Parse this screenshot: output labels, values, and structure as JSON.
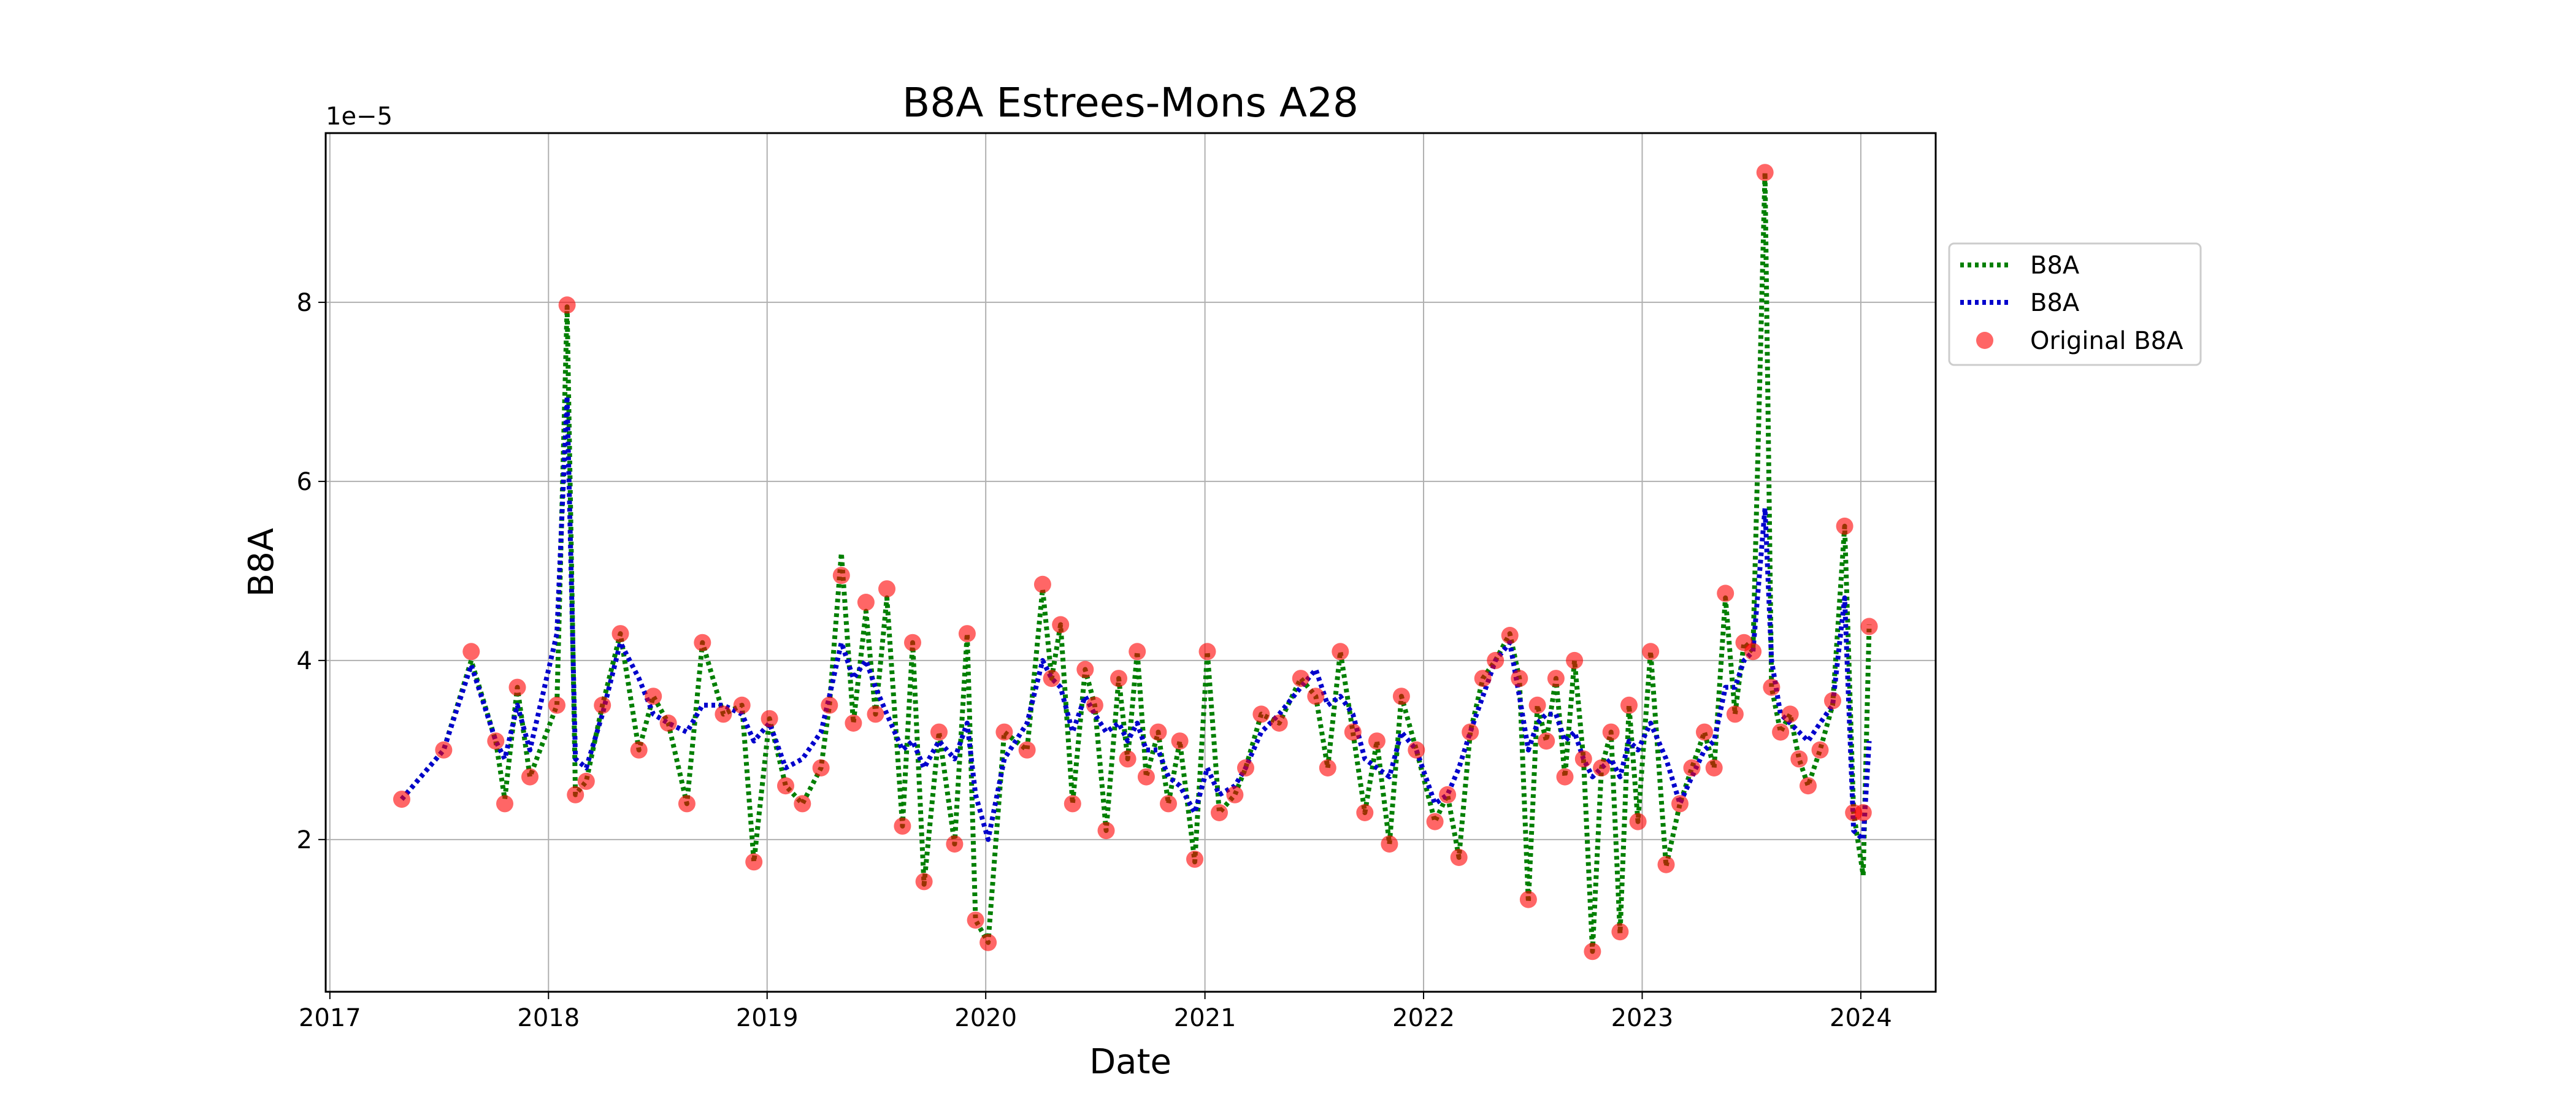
{
  "chart_data": {
    "type": "line",
    "title": "B8A Estrees-Mons A28",
    "xlabel": "Date",
    "ylabel": "B8A",
    "y_offset_label": "1e−5",
    "x_tick_labels": [
      "2017",
      "2018",
      "2019",
      "2020",
      "2021",
      "2022",
      "2023",
      "2024"
    ],
    "y_tick_labels": [
      "2",
      "4",
      "6",
      "8"
    ],
    "xlim": [
      "2016-12-25",
      "2024-05-05"
    ],
    "ylim": [
      3e-06,
      9.89e-05
    ],
    "grid": true,
    "legend_position": "outside-right",
    "series": [
      {
        "name": "B8A",
        "style": "dotted-line",
        "color": "#007f00",
        "x": [
          "2017-05-01",
          "2017-07-10",
          "2017-08-25",
          "2017-10-05",
          "2017-10-20",
          "2017-11-10",
          "2017-12-01",
          "2018-01-15",
          "2018-02-01",
          "2018-02-15",
          "2018-03-05",
          "2018-04-01",
          "2018-05-01",
          "2018-06-01",
          "2018-06-25",
          "2018-07-20",
          "2018-08-20",
          "2018-09-15",
          "2018-10-20",
          "2018-11-20",
          "2018-12-10",
          "2019-01-05",
          "2019-02-01",
          "2019-03-01",
          "2019-04-01",
          "2019-04-15",
          "2019-05-05",
          "2019-05-25",
          "2019-06-15",
          "2019-07-01",
          "2019-07-20",
          "2019-08-15",
          "2019-09-01",
          "2019-09-20",
          "2019-10-15",
          "2019-11-10",
          "2019-12-01",
          "2019-12-15",
          "2020-01-05",
          "2020-02-01",
          "2020-03-10",
          "2020-04-05",
          "2020-04-20",
          "2020-05-05",
          "2020-05-25",
          "2020-06-15",
          "2020-07-01",
          "2020-07-20",
          "2020-08-10",
          "2020-08-25",
          "2020-09-10",
          "2020-09-25",
          "2020-10-15",
          "2020-11-01",
          "2020-11-20",
          "2020-12-15",
          "2021-01-05",
          "2021-01-25",
          "2021-02-20",
          "2021-03-10",
          "2021-04-05",
          "2021-05-05",
          "2021-06-10",
          "2021-07-05",
          "2021-07-25",
          "2021-08-15",
          "2021-09-05",
          "2021-09-25",
          "2021-10-15",
          "2021-11-05",
          "2021-11-25",
          "2021-12-20",
          "2022-01-20",
          "2022-02-10",
          "2022-03-01",
          "2022-03-20",
          "2022-04-10",
          "2022-05-01",
          "2022-05-25",
          "2022-06-10",
          "2022-06-25",
          "2022-07-10",
          "2022-07-25",
          "2022-08-10",
          "2022-08-25",
          "2022-09-10",
          "2022-09-25",
          "2022-10-10",
          "2022-10-25",
          "2022-11-10",
          "2022-11-25",
          "2022-12-10",
          "2022-12-25",
          "2023-01-15",
          "2023-02-10",
          "2023-03-05",
          "2023-03-25",
          "2023-04-15",
          "2023-05-01",
          "2023-05-20",
          "2023-06-05",
          "2023-06-20",
          "2023-07-05",
          "2023-07-25",
          "2023-08-05",
          "2023-08-20",
          "2023-09-05",
          "2023-09-20",
          "2023-10-05",
          "2023-10-25",
          "2023-11-15",
          "2023-12-05",
          "2023-12-20",
          "2024-01-05",
          "2024-01-15"
        ],
        "y": [
          2.45e-05,
          3e-05,
          4e-05,
          3.1e-05,
          2.45e-05,
          3.7e-05,
          2.7e-05,
          3.5e-05,
          7.95e-05,
          2.5e-05,
          2.65e-05,
          3.5e-05,
          4.3e-05,
          3e-05,
          3.6e-05,
          3.3e-05,
          2.4e-05,
          4.2e-05,
          3.4e-05,
          3.5e-05,
          1.75e-05,
          3.35e-05,
          2.6e-05,
          2.4e-05,
          2.8e-05,
          3.5e-05,
          5.2e-05,
          3.3e-05,
          4.55e-05,
          3.4e-05,
          4.7e-05,
          2.15e-05,
          4.2e-05,
          1.5e-05,
          3.2e-05,
          1.95e-05,
          4.3e-05,
          1.1e-05,
          8.5e-06,
          3.2e-05,
          3e-05,
          4.8e-05,
          3.8e-05,
          4.4e-05,
          2.4e-05,
          3.9e-05,
          3.5e-05,
          2.1e-05,
          3.8e-05,
          2.9e-05,
          4.1e-05,
          2.7e-05,
          3.2e-05,
          2.4e-05,
          3.1e-05,
          1.75e-05,
          4.1e-05,
          2.3e-05,
          2.5e-05,
          2.8e-05,
          3.4e-05,
          3.3e-05,
          3.8e-05,
          3.6e-05,
          2.8e-05,
          4.1e-05,
          3.2e-05,
          2.3e-05,
          3.1e-05,
          1.95e-05,
          3.6e-05,
          3e-05,
          2.2e-05,
          2.5e-05,
          1.8e-05,
          3.2e-05,
          3.8e-05,
          4e-05,
          4.3e-05,
          3.8e-05,
          1.3e-05,
          3.5e-05,
          3.1e-05,
          3.8e-05,
          2.7e-05,
          4e-05,
          2.9e-05,
          7.5e-06,
          2.8e-05,
          3.2e-05,
          9.5e-06,
          3.5e-05,
          2.2e-05,
          4.1e-05,
          1.7e-05,
          2.4e-05,
          2.8e-05,
          3.2e-05,
          2.8e-05,
          4.7e-05,
          3.4e-05,
          4.2e-05,
          4.1e-05,
          9.45e-05,
          3.7e-05,
          3.2e-05,
          3.4e-05,
          2.9e-05,
          2.6e-05,
          3e-05,
          3.5e-05,
          5.5e-05,
          2.3e-05,
          1.6e-05,
          4.4e-05
        ]
      },
      {
        "name": "B8A",
        "style": "dotted-line",
        "color": "#0000cc",
        "x": [
          "2017-05-01",
          "2017-07-10",
          "2017-08-25",
          "2017-10-05",
          "2017-10-20",
          "2017-11-10",
          "2017-12-01",
          "2018-01-15",
          "2018-02-01",
          "2018-02-15",
          "2018-03-05",
          "2018-04-01",
          "2018-05-01",
          "2018-06-01",
          "2018-06-25",
          "2018-07-20",
          "2018-08-20",
          "2018-09-15",
          "2018-10-20",
          "2018-11-20",
          "2018-12-10",
          "2019-01-05",
          "2019-02-01",
          "2019-03-01",
          "2019-04-01",
          "2019-04-15",
          "2019-05-05",
          "2019-05-25",
          "2019-06-15",
          "2019-07-01",
          "2019-07-20",
          "2019-08-15",
          "2019-09-01",
          "2019-09-20",
          "2019-10-15",
          "2019-11-10",
          "2019-12-01",
          "2019-12-15",
          "2020-01-05",
          "2020-02-01",
          "2020-03-10",
          "2020-04-05",
          "2020-04-20",
          "2020-05-05",
          "2020-05-25",
          "2020-06-15",
          "2020-07-01",
          "2020-07-20",
          "2020-08-10",
          "2020-08-25",
          "2020-09-10",
          "2020-09-25",
          "2020-10-15",
          "2020-11-01",
          "2020-11-20",
          "2020-12-15",
          "2021-01-05",
          "2021-01-25",
          "2021-02-20",
          "2021-03-10",
          "2021-04-05",
          "2021-05-05",
          "2021-06-10",
          "2021-07-05",
          "2021-07-25",
          "2021-08-15",
          "2021-09-05",
          "2021-09-25",
          "2021-10-15",
          "2021-11-05",
          "2021-11-25",
          "2021-12-20",
          "2022-01-20",
          "2022-02-10",
          "2022-03-01",
          "2022-03-20",
          "2022-04-10",
          "2022-05-01",
          "2022-05-25",
          "2022-06-10",
          "2022-06-25",
          "2022-07-10",
          "2022-07-25",
          "2022-08-10",
          "2022-08-25",
          "2022-09-10",
          "2022-09-25",
          "2022-10-10",
          "2022-10-25",
          "2022-11-10",
          "2022-11-25",
          "2022-12-10",
          "2022-12-25",
          "2023-01-15",
          "2023-02-10",
          "2023-03-05",
          "2023-03-25",
          "2023-04-15",
          "2023-05-01",
          "2023-05-20",
          "2023-06-05",
          "2023-06-20",
          "2023-07-05",
          "2023-07-25",
          "2023-08-05",
          "2023-08-20",
          "2023-09-05",
          "2023-09-20",
          "2023-10-05",
          "2023-10-25",
          "2023-11-15",
          "2023-12-05",
          "2023-12-20",
          "2024-01-05",
          "2024-01-15"
        ],
        "y": [
          2.45e-05,
          3e-05,
          3.95e-05,
          3.1e-05,
          2.9e-05,
          3.5e-05,
          3e-05,
          4.3e-05,
          6.95e-05,
          2.9e-05,
          2.8e-05,
          3.4e-05,
          4.2e-05,
          3.8e-05,
          3.4e-05,
          3.3e-05,
          3.2e-05,
          3.5e-05,
          3.5e-05,
          3.4e-05,
          3.1e-05,
          3.3e-05,
          2.8e-05,
          2.9e-05,
          3.2e-05,
          3.6e-05,
          4.2e-05,
          3.8e-05,
          4e-05,
          3.7e-05,
          3.4e-05,
          3e-05,
          3.1e-05,
          2.8e-05,
          3.1e-05,
          2.9e-05,
          3.3e-05,
          2.5e-05,
          2e-05,
          2.9e-05,
          3.3e-05,
          4e-05,
          3.8e-05,
          3.7e-05,
          3.2e-05,
          3.6e-05,
          3.4e-05,
          3.2e-05,
          3.3e-05,
          3.1e-05,
          3.3e-05,
          3e-05,
          3e-05,
          2.7e-05,
          2.6e-05,
          2.3e-05,
          2.8e-05,
          2.5e-05,
          2.6e-05,
          2.8e-05,
          3.2e-05,
          3.4e-05,
          3.7e-05,
          3.9e-05,
          3.5e-05,
          3.6e-05,
          3.4e-05,
          2.9e-05,
          2.8e-05,
          2.7e-05,
          3.2e-05,
          3e-05,
          2.4e-05,
          2.5e-05,
          2.8e-05,
          3.2e-05,
          3.6e-05,
          4e-05,
          4.2e-05,
          3.6e-05,
          3e-05,
          3.3e-05,
          3.4e-05,
          3.4e-05,
          3.1e-05,
          3.2e-05,
          2.9e-05,
          2.7e-05,
          2.8e-05,
          2.9e-05,
          2.7e-05,
          3.1e-05,
          3e-05,
          3.3e-05,
          2.9e-05,
          2.4e-05,
          2.7e-05,
          3e-05,
          3.1e-05,
          3.7e-05,
          3.7e-05,
          4e-05,
          4.1e-05,
          5.7e-05,
          4e-05,
          3.4e-05,
          3.3e-05,
          3.2e-05,
          3.1e-05,
          3.3e-05,
          3.5e-05,
          4.7e-05,
          2.1e-05,
          2e-05,
          3.1e-05
        ]
      },
      {
        "name": "Original B8A",
        "style": "markers",
        "color": "#ff0000",
        "x": [
          "2017-05-01",
          "2017-07-10",
          "2017-08-25",
          "2017-10-05",
          "2017-10-20",
          "2017-11-10",
          "2017-12-01",
          "2018-01-15",
          "2018-02-01",
          "2018-02-15",
          "2018-03-05",
          "2018-04-01",
          "2018-05-01",
          "2018-06-01",
          "2018-06-25",
          "2018-07-20",
          "2018-08-20",
          "2018-09-15",
          "2018-10-20",
          "2018-11-20",
          "2018-12-10",
          "2019-01-05",
          "2019-02-01",
          "2019-03-01",
          "2019-04-01",
          "2019-04-15",
          "2019-05-05",
          "2019-05-25",
          "2019-06-15",
          "2019-07-01",
          "2019-07-20",
          "2019-08-15",
          "2019-09-01",
          "2019-09-20",
          "2019-10-15",
          "2019-11-10",
          "2019-12-01",
          "2019-12-15",
          "2020-01-05",
          "2020-02-01",
          "2020-03-10",
          "2020-04-05",
          "2020-04-20",
          "2020-05-05",
          "2020-05-25",
          "2020-06-15",
          "2020-07-01",
          "2020-07-20",
          "2020-08-10",
          "2020-08-25",
          "2020-09-10",
          "2020-09-25",
          "2020-10-15",
          "2020-11-01",
          "2020-11-20",
          "2020-12-15",
          "2021-01-05",
          "2021-01-25",
          "2021-02-20",
          "2021-03-10",
          "2021-04-05",
          "2021-05-05",
          "2021-06-10",
          "2021-07-05",
          "2021-07-25",
          "2021-08-15",
          "2021-09-05",
          "2021-09-25",
          "2021-10-15",
          "2021-11-05",
          "2021-11-25",
          "2021-12-20",
          "2022-01-20",
          "2022-02-10",
          "2022-03-01",
          "2022-03-20",
          "2022-04-10",
          "2022-05-01",
          "2022-05-25",
          "2022-06-10",
          "2022-06-25",
          "2022-07-10",
          "2022-07-25",
          "2022-08-10",
          "2022-08-25",
          "2022-09-10",
          "2022-09-25",
          "2022-10-10",
          "2022-10-25",
          "2022-11-10",
          "2022-11-25",
          "2022-12-10",
          "2022-12-25",
          "2023-01-15",
          "2023-02-10",
          "2023-03-05",
          "2023-03-25",
          "2023-04-15",
          "2023-05-01",
          "2023-05-20",
          "2023-06-05",
          "2023-06-20",
          "2023-07-05",
          "2023-07-25",
          "2023-08-05",
          "2023-08-20",
          "2023-09-05",
          "2023-09-20",
          "2023-10-05",
          "2023-10-25",
          "2023-11-15",
          "2023-12-05",
          "2023-12-20",
          "2024-01-05",
          "2024-01-15"
        ],
        "y": [
          2.45e-05,
          3e-05,
          4.1e-05,
          3.1e-05,
          2.4e-05,
          3.7e-05,
          2.7e-05,
          3.5e-05,
          7.97e-05,
          2.5e-05,
          2.65e-05,
          3.5e-05,
          4.3e-05,
          3e-05,
          3.6e-05,
          3.3e-05,
          2.4e-05,
          4.2e-05,
          3.4e-05,
          3.5e-05,
          1.75e-05,
          3.35e-05,
          2.6e-05,
          2.4e-05,
          2.8e-05,
          3.5e-05,
          4.95e-05,
          3.3e-05,
          4.65e-05,
          3.4e-05,
          4.8e-05,
          2.15e-05,
          4.2e-05,
          1.53e-05,
          3.2e-05,
          1.95e-05,
          4.3e-05,
          1.1e-05,
          8.5e-06,
          3.2e-05,
          3e-05,
          4.85e-05,
          3.8e-05,
          4.4e-05,
          2.4e-05,
          3.9e-05,
          3.5e-05,
          2.1e-05,
          3.8e-05,
          2.9e-05,
          4.1e-05,
          2.7e-05,
          3.2e-05,
          2.4e-05,
          3.1e-05,
          1.78e-05,
          4.1e-05,
          2.3e-05,
          2.5e-05,
          2.8e-05,
          3.4e-05,
          3.3e-05,
          3.8e-05,
          3.6e-05,
          2.8e-05,
          4.1e-05,
          3.2e-05,
          2.3e-05,
          3.1e-05,
          1.95e-05,
          3.6e-05,
          3e-05,
          2.2e-05,
          2.5e-05,
          1.8e-05,
          3.2e-05,
          3.8e-05,
          4e-05,
          4.28e-05,
          3.8e-05,
          1.33e-05,
          3.5e-05,
          3.1e-05,
          3.8e-05,
          2.7e-05,
          4e-05,
          2.9e-05,
          7.5e-06,
          2.8e-05,
          3.2e-05,
          9.7e-06,
          3.5e-05,
          2.2e-05,
          4.1e-05,
          1.72e-05,
          2.4e-05,
          2.8e-05,
          3.2e-05,
          2.8e-05,
          4.75e-05,
          3.4e-05,
          4.2e-05,
          4.1e-05,
          9.45e-05,
          3.7e-05,
          3.2e-05,
          3.4e-05,
          2.9e-05,
          2.6e-05,
          3e-05,
          3.55e-05,
          5.5e-05,
          2.3e-05,
          2.3e-05,
          4.38e-05
        ]
      }
    ]
  }
}
